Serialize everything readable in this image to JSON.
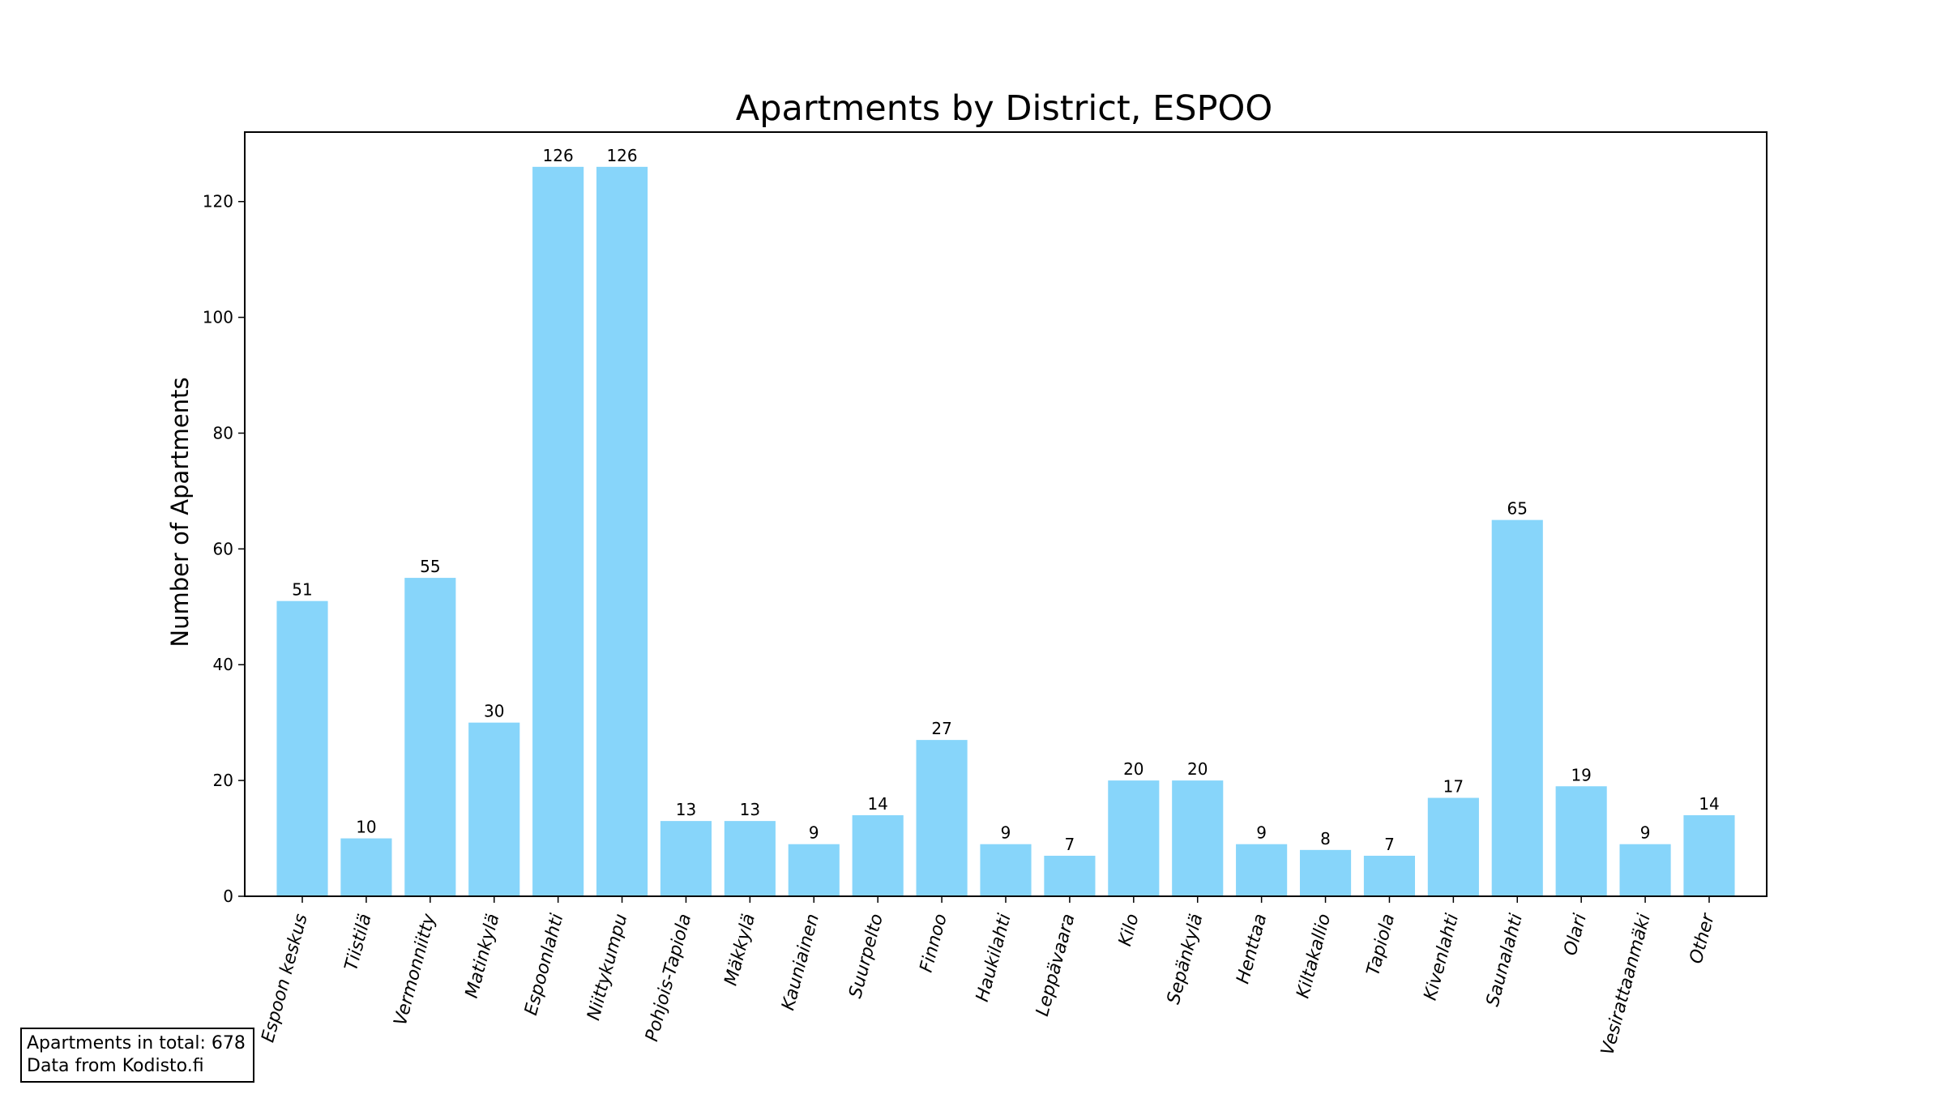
{
  "chart_data": {
    "type": "bar",
    "title": "Apartments by District, ESPOO",
    "xlabel": "",
    "ylabel": "Number of Apartments",
    "categories": [
      "Espoon keskus",
      "Tiistilä",
      "Vermonniitty",
      "Matinkylä",
      "Espoonlahti",
      "Niittykumpu",
      "Pohjois-Tapiola",
      "Mäkkylä",
      "Kauniainen",
      "Suurpelto",
      "Finnoo",
      "Haukilahti",
      "Leppävaara",
      "Kilo",
      "Sepänkylä",
      "Henttaa",
      "Kiltakallio",
      "Tapiola",
      "Kivenlahti",
      "Saunalahti",
      "Olari",
      "Vesirattaanmäki",
      "Other"
    ],
    "values": [
      51,
      10,
      55,
      30,
      126,
      126,
      13,
      13,
      9,
      14,
      27,
      9,
      7,
      20,
      20,
      9,
      8,
      7,
      17,
      65,
      19,
      9,
      14
    ],
    "ylim": [
      0,
      132
    ],
    "yticks": [
      0,
      20,
      40,
      60,
      80,
      100,
      120
    ],
    "bar_color": "#87d5fa",
    "grid": false,
    "data_labels": true
  },
  "footnote": {
    "line1": "Apartments in total: 678",
    "line2": "Data from Kodisto.fi"
  }
}
